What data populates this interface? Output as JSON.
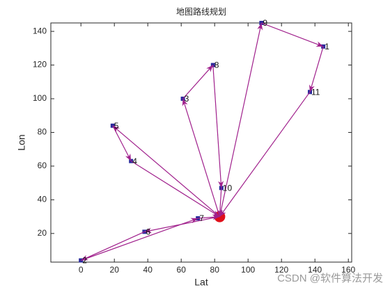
{
  "chart_data": {
    "type": "route",
    "title": "地图路线规划",
    "x_label": "Lat",
    "y_label": "Lon",
    "x": [
      83,
      145,
      0,
      61,
      30,
      19,
      38,
      70,
      79,
      108,
      84,
      137
    ],
    "y": [
      30,
      131,
      4,
      100,
      63,
      84,
      21,
      29,
      120,
      145,
      47,
      104
    ],
    "labels": [
      null,
      "1",
      "2",
      "3",
      "4",
      "5",
      "6",
      "7",
      "8",
      "9",
      "10",
      "11"
    ],
    "route": [
      0,
      9,
      1,
      11,
      0,
      3,
      8,
      10,
      0,
      5,
      4,
      0,
      6,
      2,
      7,
      0
    ],
    "node_color": "#2a2a9c",
    "depot_color": "#e0101a",
    "route_color": "#a0208c",
    "xlim": [
      -18,
      162
    ],
    "ylim": [
      3,
      145
    ],
    "xticks": [
      0,
      20,
      40,
      60,
      80,
      100,
      120,
      140,
      160
    ],
    "yticks": [
      20,
      40,
      60,
      80,
      100,
      120,
      140
    ],
    "watermark": "CSDN @软件算法开发"
  }
}
